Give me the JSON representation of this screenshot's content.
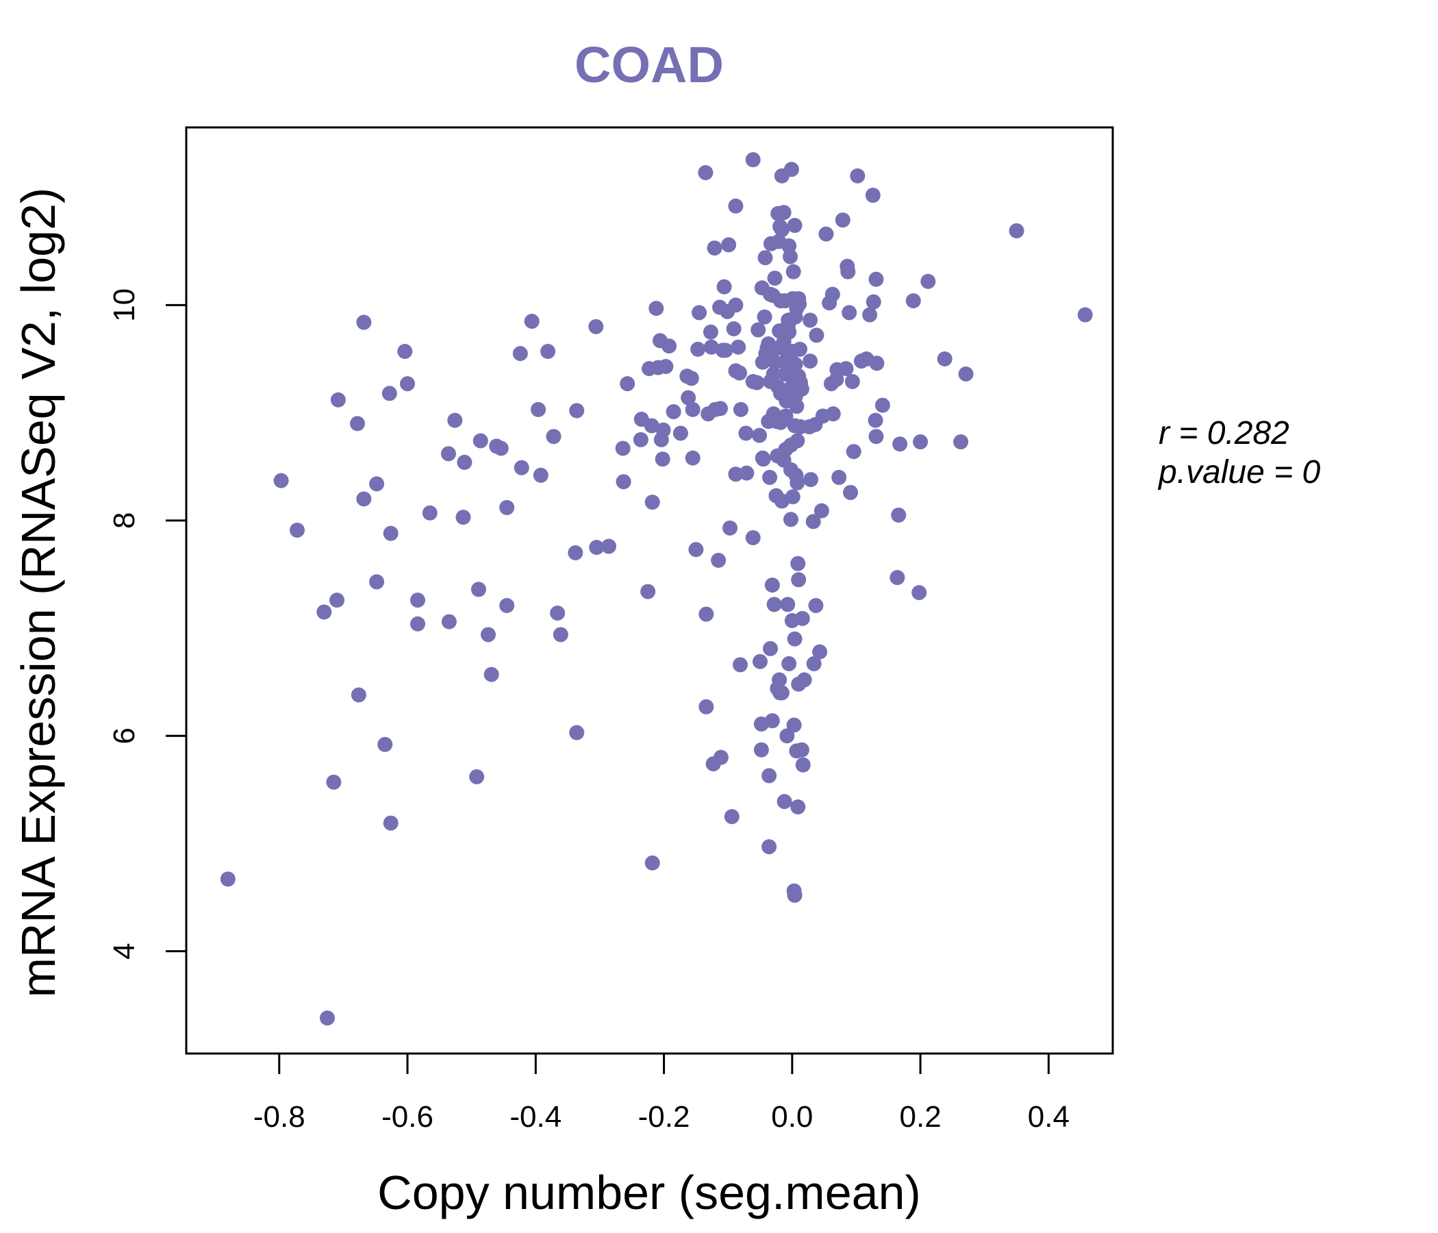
{
  "chart_data": {
    "type": "scatter",
    "title": "COAD",
    "xlabel": "Copy number (seg.mean)",
    "ylabel": "mRNA Expression (RNASeq V2, log2)",
    "xlim": [
      -0.945,
      0.5
    ],
    "ylim": [
      3.05,
      11.65
    ],
    "xticks": [
      -0.8,
      -0.6,
      -0.4,
      -0.2,
      0.0,
      0.2,
      0.4
    ],
    "xtick_labels": [
      "-0.8",
      "-0.6",
      "-0.4",
      "-0.2",
      "0.0",
      "0.2",
      "0.4"
    ],
    "yticks": [
      4,
      6,
      8,
      10
    ],
    "ytick_labels": [
      "4",
      "6",
      "8",
      "10"
    ],
    "grid": false,
    "point_color": "#7570b3",
    "annotation": {
      "r_label": "r = 0.282",
      "p_label": "p.value = 0"
    },
    "points": [
      [
        -0.88,
        4.67
      ],
      [
        -0.797,
        8.37
      ],
      [
        -0.772,
        7.91
      ],
      [
        -0.73,
        7.15
      ],
      [
        -0.725,
        3.38
      ],
      [
        -0.715,
        5.57
      ],
      [
        -0.71,
        7.26
      ],
      [
        -0.708,
        9.12
      ],
      [
        -0.678,
        8.9
      ],
      [
        -0.676,
        6.38
      ],
      [
        -0.668,
        9.84
      ],
      [
        -0.668,
        8.2
      ],
      [
        -0.648,
        8.34
      ],
      [
        -0.648,
        7.43
      ],
      [
        -0.635,
        5.92
      ],
      [
        -0.628,
        9.18
      ],
      [
        -0.626,
        7.88
      ],
      [
        -0.626,
        5.19
      ],
      [
        -0.604,
        9.57
      ],
      [
        -0.6,
        9.27
      ],
      [
        -0.584,
        7.26
      ],
      [
        -0.584,
        7.04
      ],
      [
        -0.565,
        8.07
      ],
      [
        -0.536,
        8.62
      ],
      [
        -0.535,
        7.06
      ],
      [
        -0.526,
        8.93
      ],
      [
        -0.511,
        8.54
      ],
      [
        -0.513,
        8.03
      ],
      [
        -0.492,
        5.62
      ],
      [
        -0.489,
        7.36
      ],
      [
        -0.486,
        8.74
      ],
      [
        -0.474,
        6.94
      ],
      [
        -0.469,
        6.57
      ],
      [
        -0.461,
        8.69
      ],
      [
        -0.454,
        8.67
      ],
      [
        -0.445,
        8.12
      ],
      [
        -0.445,
        7.21
      ],
      [
        -0.424,
        9.55
      ],
      [
        -0.422,
        8.49
      ],
      [
        -0.406,
        9.85
      ],
      [
        -0.396,
        9.03
      ],
      [
        -0.392,
        8.42
      ],
      [
        -0.381,
        9.57
      ],
      [
        -0.372,
        8.78
      ],
      [
        -0.366,
        7.14
      ],
      [
        -0.361,
        6.94
      ],
      [
        -0.338,
        7.7
      ],
      [
        -0.336,
        9.02
      ],
      [
        -0.336,
        6.03
      ],
      [
        -0.306,
        9.8
      ],
      [
        -0.305,
        7.75
      ],
      [
        -0.286,
        7.76
      ],
      [
        -0.264,
        8.67
      ],
      [
        -0.263,
        8.36
      ],
      [
        -0.257,
        9.27
      ],
      [
        -0.236,
        8.75
      ],
      [
        -0.235,
        8.94
      ],
      [
        -0.225,
        7.34
      ],
      [
        -0.223,
        9.41
      ],
      [
        -0.219,
        8.88
      ],
      [
        -0.218,
        8.17
      ],
      [
        -0.218,
        4.82
      ],
      [
        -0.212,
        9.97
      ],
      [
        -0.209,
        9.42
      ],
      [
        -0.206,
        9.67
      ],
      [
        -0.204,
        8.75
      ],
      [
        -0.202,
        8.57
      ],
      [
        -0.201,
        8.84
      ],
      [
        -0.197,
        9.43
      ],
      [
        -0.192,
        9.62
      ],
      [
        -0.185,
        9.01
      ],
      [
        -0.174,
        8.81
      ],
      [
        -0.164,
        9.34
      ],
      [
        -0.162,
        9.14
      ],
      [
        -0.157,
        9.32
      ],
      [
        -0.155,
        9.03
      ],
      [
        -0.155,
        8.58
      ],
      [
        -0.15,
        7.73
      ],
      [
        -0.147,
        9.59
      ],
      [
        -0.145,
        9.93
      ],
      [
        -0.135,
        11.23
      ],
      [
        -0.134,
        7.13
      ],
      [
        -0.134,
        6.27
      ],
      [
        -0.131,
        8.99
      ],
      [
        -0.127,
        9.75
      ],
      [
        -0.126,
        9.61
      ],
      [
        -0.123,
        5.74
      ],
      [
        -0.121,
        10.53
      ],
      [
        -0.12,
        9.03
      ],
      [
        -0.115,
        7.63
      ],
      [
        -0.113,
        9.98
      ],
      [
        -0.112,
        9.04
      ],
      [
        -0.111,
        5.8
      ],
      [
        -0.108,
        9.58
      ],
      [
        -0.106,
        10.17
      ],
      [
        -0.104,
        9.58
      ],
      [
        -0.101,
        9.94
      ],
      [
        -0.099,
        10.56
      ],
      [
        -0.097,
        7.93
      ],
      [
        -0.094,
        5.25
      ],
      [
        -0.091,
        9.78
      ],
      [
        -0.088,
        10.92
      ],
      [
        -0.088,
        8.43
      ],
      [
        -0.088,
        9.39
      ],
      [
        -0.088,
        10.0
      ],
      [
        -0.084,
        9.61
      ],
      [
        -0.082,
        9.37
      ],
      [
        -0.081,
        6.66
      ],
      [
        -0.08,
        9.03
      ],
      [
        -0.072,
        8.81
      ],
      [
        -0.071,
        8.44
      ],
      [
        -0.061,
        11.35
      ],
      [
        -0.061,
        9.29
      ],
      [
        -0.061,
        7.84
      ],
      [
        -0.055,
        9.28
      ],
      [
        -0.053,
        9.77
      ],
      [
        -0.051,
        8.79
      ],
      [
        -0.05,
        6.69
      ],
      [
        -0.048,
        6.11
      ],
      [
        -0.048,
        5.87
      ],
      [
        -0.047,
        10.16
      ],
      [
        -0.046,
        9.47
      ],
      [
        -0.046,
        8.58
      ],
      [
        -0.045,
        8.57
      ],
      [
        -0.043,
        9.89
      ],
      [
        -0.042,
        10.44
      ],
      [
        -0.041,
        9.55
      ],
      [
        -0.039,
        9.6
      ],
      [
        -0.037,
        9.64
      ],
      [
        -0.037,
        8.92
      ],
      [
        -0.036,
        5.63
      ],
      [
        -0.036,
        4.97
      ],
      [
        -0.035,
        8.4
      ],
      [
        -0.034,
        10.1
      ],
      [
        -0.034,
        9.29
      ],
      [
        -0.034,
        6.81
      ],
      [
        -0.033,
        10.57
      ],
      [
        -0.032,
        9.55
      ],
      [
        -0.031,
        7.4
      ],
      [
        -0.031,
        6.14
      ],
      [
        -0.03,
        10.09
      ],
      [
        -0.029,
        9.36
      ],
      [
        -0.029,
        8.99
      ],
      [
        -0.028,
        7.22
      ],
      [
        -0.027,
        10.25
      ],
      [
        -0.027,
        9.47
      ],
      [
        -0.025,
        8.23
      ],
      [
        -0.024,
        8.92
      ],
      [
        -0.023,
        8.6
      ],
      [
        -0.023,
        6.44
      ],
      [
        -0.022,
        10.85
      ],
      [
        -0.022,
        9.24
      ],
      [
        -0.021,
        10.59
      ],
      [
        -0.02,
        9.76
      ],
      [
        -0.02,
        6.52
      ],
      [
        -0.019,
        10.73
      ],
      [
        -0.019,
        6.4
      ],
      [
        -0.018,
        10.04
      ],
      [
        -0.018,
        9.61
      ],
      [
        -0.018,
        9.18
      ],
      [
        -0.018,
        8.91
      ],
      [
        -0.016,
        11.2
      ],
      [
        -0.016,
        10.7
      ],
      [
        -0.016,
        8.18
      ],
      [
        -0.016,
        6.4
      ],
      [
        -0.013,
        10.86
      ],
      [
        -0.013,
        9.66
      ],
      [
        -0.013,
        8.56
      ],
      [
        -0.012,
        9.59
      ],
      [
        -0.012,
        5.39
      ],
      [
        -0.011,
        10.04
      ],
      [
        -0.011,
        9.72
      ],
      [
        -0.011,
        9.36
      ],
      [
        -0.01,
        8.97
      ],
      [
        -0.01,
        8.66
      ],
      [
        -0.009,
        9.48
      ],
      [
        -0.009,
        9.11
      ],
      [
        -0.008,
        6.0
      ],
      [
        -0.007,
        9.52
      ],
      [
        -0.007,
        9.42
      ],
      [
        -0.007,
        7.22
      ],
      [
        -0.006,
        9.86
      ],
      [
        -0.006,
        9.82
      ],
      [
        -0.006,
        9.21
      ],
      [
        -0.005,
        10.55
      ],
      [
        -0.005,
        9.75
      ],
      [
        -0.005,
        6.67
      ],
      [
        -0.004,
        9.38
      ],
      [
        -0.003,
        10.45
      ],
      [
        -0.003,
        9.16
      ],
      [
        -0.002,
        8.7
      ],
      [
        -0.002,
        8.47
      ],
      [
        -0.002,
        8.01
      ],
      [
        -0.001,
        11.26
      ],
      [
        0.0,
        9.47
      ],
      [
        0.0,
        7.07
      ],
      [
        0.001,
        10.06
      ],
      [
        0.001,
        9.57
      ],
      [
        0.001,
        9.26
      ],
      [
        0.001,
        8.22
      ],
      [
        0.002,
        10.31
      ],
      [
        0.002,
        9.38
      ],
      [
        0.003,
        9.1
      ],
      [
        0.003,
        6.1
      ],
      [
        0.003,
        4.56
      ],
      [
        0.004,
        10.74
      ],
      [
        0.004,
        9.35
      ],
      [
        0.004,
        8.88
      ],
      [
        0.004,
        6.9
      ],
      [
        0.004,
        4.52
      ],
      [
        0.005,
        9.89
      ],
      [
        0.005,
        9.45
      ],
      [
        0.005,
        9.15
      ],
      [
        0.006,
        8.42
      ],
      [
        0.007,
        9.97
      ],
      [
        0.007,
        9.32
      ],
      [
        0.007,
        9.06
      ],
      [
        0.007,
        5.86
      ],
      [
        0.008,
        8.74
      ],
      [
        0.008,
        8.35
      ],
      [
        0.009,
        7.6
      ],
      [
        0.009,
        5.34
      ],
      [
        0.01,
        10.06
      ],
      [
        0.01,
        9.34
      ],
      [
        0.01,
        7.45
      ],
      [
        0.01,
        6.48
      ],
      [
        0.011,
        10.01
      ],
      [
        0.012,
        9.59
      ],
      [
        0.013,
        9.28
      ],
      [
        0.013,
        8.87
      ],
      [
        0.015,
        9.22
      ],
      [
        0.015,
        5.87
      ],
      [
        0.016,
        7.09
      ],
      [
        0.017,
        5.73
      ],
      [
        0.019,
        6.52
      ],
      [
        0.027,
        8.87
      ],
      [
        0.028,
        9.86
      ],
      [
        0.028,
        9.48
      ],
      [
        0.029,
        8.38
      ],
      [
        0.033,
        7.99
      ],
      [
        0.034,
        6.67
      ],
      [
        0.036,
        8.89
      ],
      [
        0.037,
        7.21
      ],
      [
        0.038,
        9.72
      ],
      [
        0.043,
        6.78
      ],
      [
        0.046,
        8.09
      ],
      [
        0.048,
        8.97
      ],
      [
        0.053,
        10.66
      ],
      [
        0.058,
        10.02
      ],
      [
        0.061,
        9.27
      ],
      [
        0.063,
        10.1
      ],
      [
        0.064,
        8.99
      ],
      [
        0.069,
        9.31
      ],
      [
        0.07,
        9.4
      ],
      [
        0.073,
        8.4
      ],
      [
        0.079,
        10.79
      ],
      [
        0.084,
        9.41
      ],
      [
        0.086,
        10.36
      ],
      [
        0.087,
        10.31
      ],
      [
        0.089,
        9.93
      ],
      [
        0.091,
        8.26
      ],
      [
        0.094,
        9.29
      ],
      [
        0.096,
        8.64
      ],
      [
        0.102,
        11.2
      ],
      [
        0.108,
        9.48
      ],
      [
        0.116,
        9.5
      ],
      [
        0.121,
        9.91
      ],
      [
        0.126,
        11.02
      ],
      [
        0.127,
        10.03
      ],
      [
        0.13,
        8.93
      ],
      [
        0.131,
        10.24
      ],
      [
        0.131,
        8.78
      ],
      [
        0.132,
        9.46
      ],
      [
        0.141,
        9.07
      ],
      [
        0.164,
        7.47
      ],
      [
        0.166,
        8.05
      ],
      [
        0.168,
        8.71
      ],
      [
        0.189,
        10.04
      ],
      [
        0.198,
        7.33
      ],
      [
        0.2,
        8.73
      ],
      [
        0.212,
        10.22
      ],
      [
        0.238,
        9.5
      ],
      [
        0.263,
        8.73
      ],
      [
        0.271,
        9.36
      ],
      [
        0.35,
        10.69
      ],
      [
        0.457,
        9.91
      ]
    ]
  }
}
